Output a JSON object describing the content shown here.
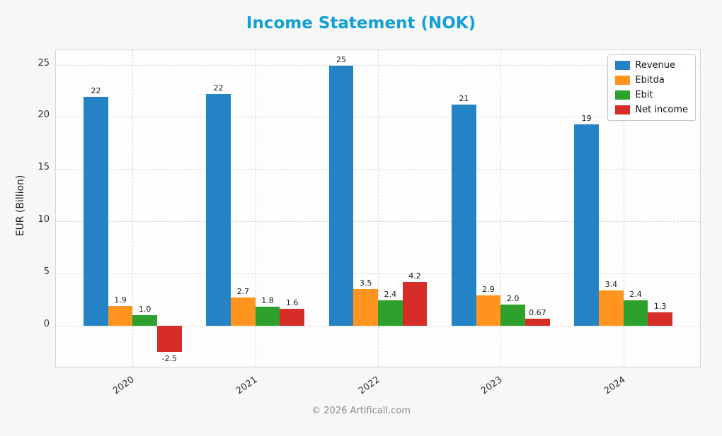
{
  "chart_data": {
    "type": "bar",
    "title": "Income Statement (NOK)",
    "ylabel": "EUR (Billion)",
    "categories": [
      "2020",
      "2021",
      "2022",
      "2023",
      "2024"
    ],
    "series": [
      {
        "name": "Revenue",
        "color": "#2483c5",
        "values": [
          21.9,
          22.2,
          24.9,
          21.2,
          19.3
        ],
        "labels": [
          "22",
          "22",
          "25",
          "21",
          "19"
        ]
      },
      {
        "name": "Ebitda",
        "color": "#ff941e",
        "values": [
          1.9,
          2.7,
          3.5,
          2.9,
          3.4
        ],
        "labels": [
          "1.9",
          "2.7",
          "3.5",
          "2.9",
          "3.4"
        ]
      },
      {
        "name": "Ebit",
        "color": "#2ea02c",
        "values": [
          1.0,
          1.8,
          2.4,
          2.0,
          2.4
        ],
        "labels": [
          "1.0",
          "1.8",
          "2.4",
          "2.0",
          "2.4"
        ]
      },
      {
        "name": "Net income",
        "color": "#d62d28",
        "values": [
          -2.5,
          1.6,
          4.2,
          0.67,
          1.3
        ],
        "labels": [
          "-2.5",
          "1.6",
          "4.2",
          "0.67",
          "1.3"
        ]
      }
    ],
    "yticks": [
      0,
      5,
      10,
      15,
      20,
      25
    ],
    "ylim": [
      -3.95,
      26.4
    ],
    "legend_position": "upper right",
    "grid": "dashed"
  },
  "colors": {
    "title": "#109fd7"
  },
  "footer": {
    "text": "© 2026 Artificall.com"
  }
}
